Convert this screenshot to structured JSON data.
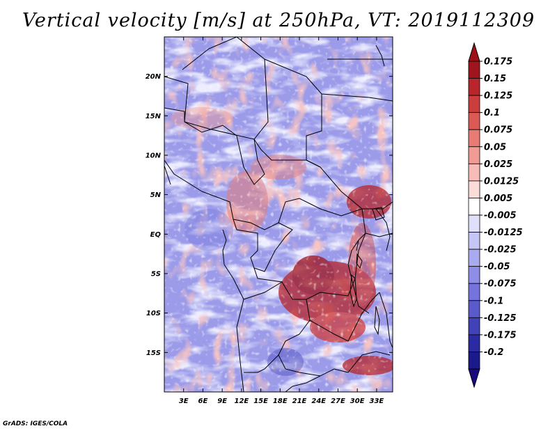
{
  "title": "Vertical velocity [m/s] at 250hPa, VT: 2019112309",
  "credit": "GrADS: IGES/COLA",
  "map": {
    "lon_range": [
      0,
      35.5
    ],
    "lat_range": [
      -20,
      25
    ],
    "lat_ticks": [
      {
        "value": 20,
        "label": "20N"
      },
      {
        "value": 15,
        "label": "15N"
      },
      {
        "value": 10,
        "label": "10N"
      },
      {
        "value": 5,
        "label": "5N"
      },
      {
        "value": 0,
        "label": "EQ"
      },
      {
        "value": -5,
        "label": "5S"
      },
      {
        "value": -10,
        "label": "10S"
      },
      {
        "value": -15,
        "label": "15S"
      }
    ],
    "lon_ticks": [
      {
        "value": 3,
        "label": "3E"
      },
      {
        "value": 6,
        "label": "6E"
      },
      {
        "value": 9,
        "label": "9E"
      },
      {
        "value": 12,
        "label": "12E"
      },
      {
        "value": 15,
        "label": "15E"
      },
      {
        "value": 18,
        "label": "18E"
      },
      {
        "value": 21,
        "label": "21E"
      },
      {
        "value": 24,
        "label": "24E"
      },
      {
        "value": 27,
        "label": "27E"
      },
      {
        "value": 30,
        "label": "30E"
      },
      {
        "value": 33,
        "label": "33E"
      }
    ]
  },
  "colorbar": {
    "labels": [
      "0.175",
      "0.15",
      "0.125",
      "0.1",
      "0.075",
      "0.05",
      "0.025",
      "0.0125",
      "0.005",
      "-0.005",
      "-0.0125",
      "-0.025",
      "-0.05",
      "-0.075",
      "-0.1",
      "-0.125",
      "-0.175",
      "-0.2"
    ],
    "colors": [
      "#a0141e",
      "#b8262b",
      "#cc3d3d",
      "#dc5a55",
      "#e87c74",
      "#f09c95",
      "#f7bcb7",
      "#fbdcd9",
      "#ffffff",
      "#e0e0fb",
      "#c6c6f6",
      "#aaaaf0",
      "#8e8ee8",
      "#7474dc",
      "#5a5acb",
      "#4141b8",
      "#2a2aa3",
      "#1a1a8a"
    ],
    "top_color": "#9c1218",
    "bottom_color": "#1a0a80"
  }
}
